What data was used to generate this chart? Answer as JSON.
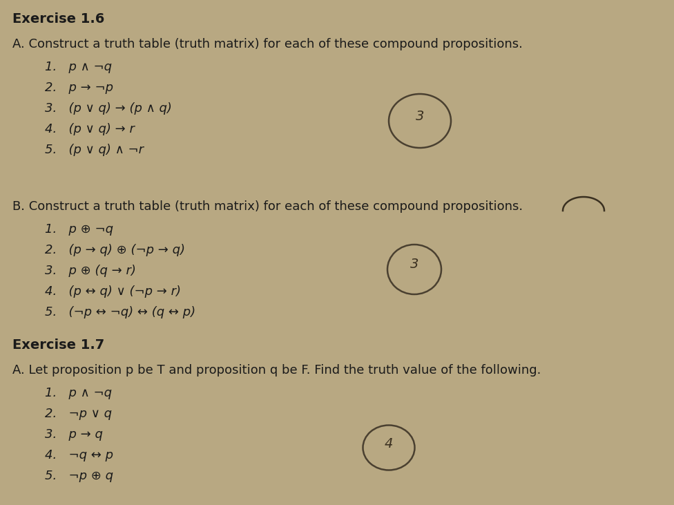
{
  "background_color": "#b8a882",
  "title_ex16": "Exercise 1.6",
  "section_a_header": "A. Construct a truth table (truth matrix) for each of these compound propositions.",
  "section_a_items": [
    "1.   p ∧ ¬q",
    "2.   p → ¬p",
    "3.   (p ∨ q) → (p ∧ q)",
    "4.   (p ∨ q) → r",
    "5.   (p ∨ q) ∧ ¬r"
  ],
  "section_b_header": "B. Construct a truth table (truth matrix) for each of these compound propositions.",
  "section_b_items": [
    "1.   p ⊕ ¬q",
    "2.   (p → q) ⊕ (¬p → q)",
    "3.   p ⊕ (q → r)",
    "4.   (p ↔ q) ∨ (¬p → r)",
    "5.   (¬p ↔ ¬q) ↔ (q ↔ p)"
  ],
  "title_ex17": "Exercise 1.7",
  "section_c_header": "A. Let proposition p be T and proposition q be F. Find the truth value of the following.",
  "section_c_items": [
    "1.   p ∧ ¬q",
    "2.   ¬p ∨ q",
    "3.   p → q",
    "4.   ¬q ↔ p",
    "5.   ¬p ⊕ q"
  ],
  "font_size_title": 14,
  "font_size_body": 13,
  "font_size_item": 13,
  "text_color": "#1a1a1a"
}
